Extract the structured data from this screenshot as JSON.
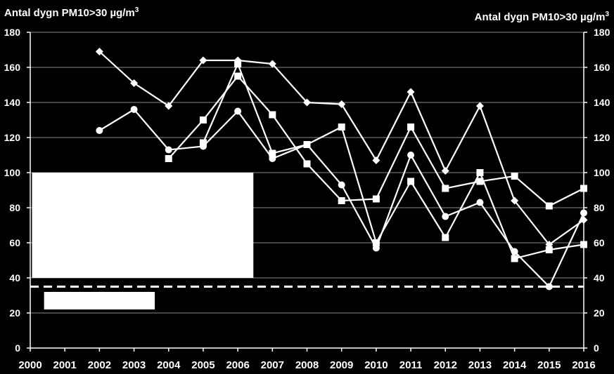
{
  "chart_data": {
    "type": "line",
    "title_left": "Antal dygn PM10>30 µg/m",
    "title_right": "Antal dygn PM10>30 µg/m",
    "title_superscript": "3",
    "x": [
      2000,
      2001,
      2002,
      2003,
      2004,
      2005,
      2006,
      2007,
      2008,
      2009,
      2010,
      2011,
      2012,
      2013,
      2014,
      2015,
      2016
    ],
    "xlim": [
      2000,
      2016
    ],
    "ylim": [
      0,
      180
    ],
    "yticks": [
      0,
      20,
      40,
      60,
      80,
      100,
      120,
      140,
      160,
      180
    ],
    "grid": true,
    "reference_line": {
      "y": 35,
      "style": "dashed"
    },
    "legend_boxes": "left, blank white",
    "series": [
      {
        "marker": "diamond",
        "x": [
          2002,
          2003,
          2004,
          2005,
          2006,
          2007,
          2008,
          2009,
          2010,
          2011,
          2012,
          2013,
          2014,
          2015,
          2016
        ],
        "values": [
          169,
          151,
          138,
          164,
          164,
          162,
          140,
          139,
          107,
          146,
          101,
          138,
          84,
          59,
          73
        ]
      },
      {
        "marker": "square",
        "x": [
          2004,
          2005,
          2006,
          2007,
          2008,
          2009,
          2010,
          2011,
          2012,
          2013,
          2014,
          2015,
          2016
        ],
        "values": [
          108,
          130,
          155,
          133,
          105,
          84,
          85,
          126,
          91,
          95,
          98,
          81,
          91
        ]
      },
      {
        "marker": "square",
        "x": [
          2005,
          2006,
          2007,
          2008,
          2009,
          2010,
          2011,
          2012,
          2013,
          2014,
          2015,
          2016
        ],
        "values": [
          117,
          162,
          111,
          116,
          126,
          60,
          95,
          63,
          100,
          51,
          56,
          59
        ]
      },
      {
        "marker": "circle",
        "x": [
          2002,
          2003,
          2004,
          2005,
          2006,
          2007,
          2008,
          2009,
          2010,
          2011,
          2012,
          2013,
          2014,
          2015,
          2016
        ],
        "values": [
          124,
          136,
          113,
          115,
          135,
          108,
          116,
          93,
          57,
          110,
          75,
          83,
          55,
          35,
          77
        ]
      }
    ]
  }
}
